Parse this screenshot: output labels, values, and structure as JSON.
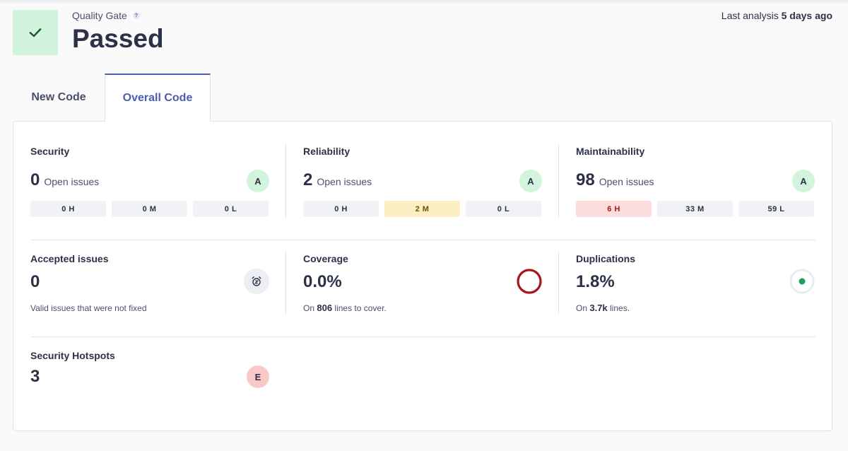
{
  "quality_gate": {
    "label": "Quality Gate",
    "help": "?",
    "status": "Passed"
  },
  "last_analysis": {
    "prefix": "Last analysis",
    "value": "5 days ago"
  },
  "tabs": [
    {
      "label": "New Code",
      "active": false
    },
    {
      "label": "Overall Code",
      "active": true
    }
  ],
  "security": {
    "title": "Security",
    "count": "0",
    "count_label": "Open issues",
    "rating": "A",
    "severities": [
      "0 H",
      "0 M",
      "0 L"
    ]
  },
  "reliability": {
    "title": "Reliability",
    "count": "2",
    "count_label": "Open issues",
    "rating": "A",
    "severities": [
      "0 H",
      "2 M",
      "0 L"
    ]
  },
  "maintainability": {
    "title": "Maintainability",
    "count": "98",
    "count_label": "Open issues",
    "rating": "A",
    "severities": [
      "6 H",
      "33 M",
      "59 L"
    ]
  },
  "accepted": {
    "title": "Accepted issues",
    "count": "0",
    "note": "Valid issues that were not fixed"
  },
  "coverage": {
    "title": "Coverage",
    "value": "0.0%",
    "note_prefix": "On",
    "note_value": "806",
    "note_suffix": "lines to cover.",
    "percent": 0
  },
  "duplications": {
    "title": "Duplications",
    "value": "1.8%",
    "note_prefix": "On",
    "note_value": "3.7k",
    "note_suffix": "lines.",
    "percent": 1.8
  },
  "hotspots": {
    "title": "Security Hotspots",
    "count": "3",
    "rating": "E"
  },
  "colors": {
    "accent": "#4e5cb0",
    "success_bg": "#d2f3dc",
    "danger": "#a8151d",
    "duplication_dot": "#16a05a"
  }
}
